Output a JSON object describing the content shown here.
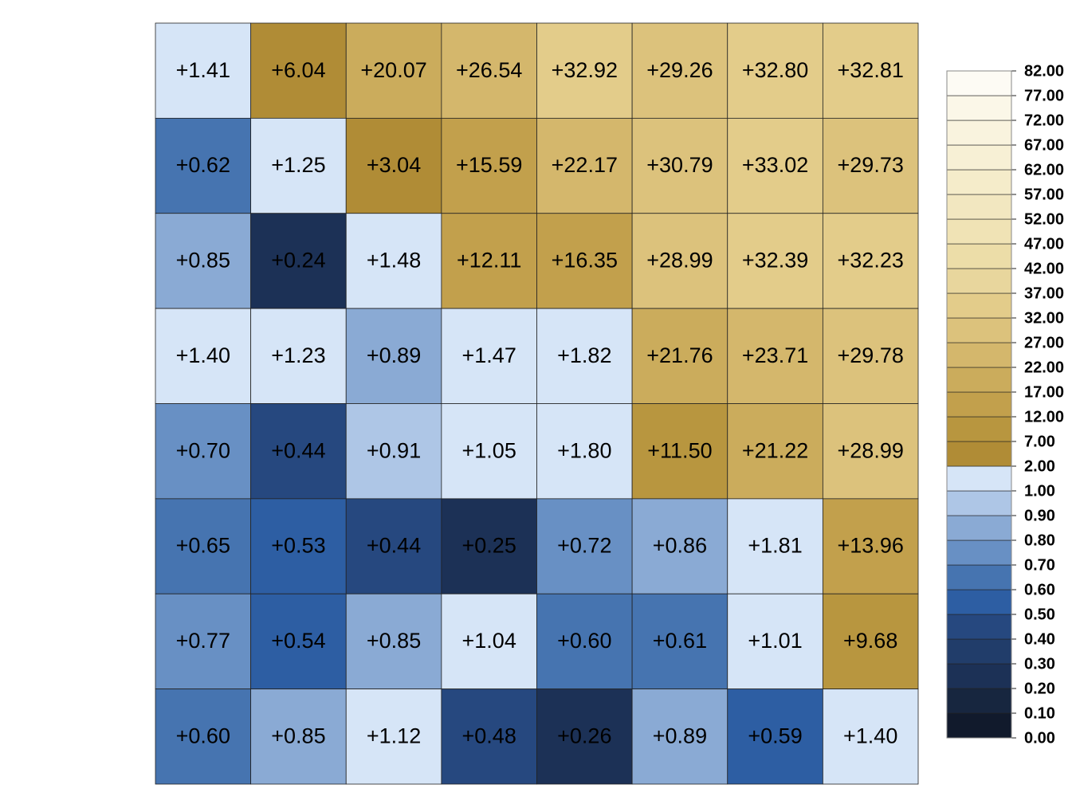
{
  "chart_data": {
    "type": "heatmap",
    "values": [
      [
        1.41,
        6.04,
        20.07,
        26.54,
        32.92,
        29.26,
        32.8,
        32.81
      ],
      [
        0.62,
        1.25,
        3.04,
        15.59,
        22.17,
        30.79,
        33.02,
        29.73
      ],
      [
        0.85,
        0.24,
        1.48,
        12.11,
        16.35,
        28.99,
        32.39,
        32.23
      ],
      [
        1.4,
        1.23,
        0.89,
        1.47,
        1.82,
        21.76,
        23.71,
        29.78
      ],
      [
        0.7,
        0.44,
        0.91,
        1.05,
        1.8,
        11.5,
        21.22,
        28.99
      ],
      [
        0.65,
        0.53,
        0.44,
        0.25,
        0.72,
        0.86,
        1.81,
        13.96
      ],
      [
        0.77,
        0.54,
        0.85,
        1.04,
        0.6,
        0.61,
        1.01,
        9.68
      ],
      [
        0.6,
        0.85,
        1.12,
        0.48,
        0.26,
        0.89,
        0.59,
        1.4
      ]
    ],
    "value_labels": [
      [
        "+1.41",
        "+6.04",
        "+20.07",
        "+26.54",
        "+32.92",
        "+29.26",
        "+32.80",
        "+32.81"
      ],
      [
        "+0.62",
        "+1.25",
        "+3.04",
        "+15.59",
        "+22.17",
        "+30.79",
        "+33.02",
        "+29.73"
      ],
      [
        "+0.85",
        "+0.24",
        "+1.48",
        "+12.11",
        "+16.35",
        "+28.99",
        "+32.39",
        "+32.23"
      ],
      [
        "+1.40",
        "+1.23",
        "+0.89",
        "+1.47",
        "+1.82",
        "+21.76",
        "+23.71",
        "+29.78"
      ],
      [
        "+0.70",
        "+0.44",
        "+0.91",
        "+1.05",
        "+1.80",
        "+11.50",
        "+21.22",
        "+28.99"
      ],
      [
        "+0.65",
        "+0.53",
        "+0.44",
        "+0.25",
        "+0.72",
        "+0.86",
        "+1.81",
        "+13.96"
      ],
      [
        "+0.77",
        "+0.54",
        "+0.85",
        "+1.04",
        "+0.60",
        "+0.61",
        "+1.01",
        "+9.68"
      ],
      [
        "+0.60",
        "+0.85",
        "+1.12",
        "+0.48",
        "+0.26",
        "+0.89",
        "+0.59",
        "+1.40"
      ]
    ],
    "colorbar": {
      "ticks": [
        {
          "value": 0,
          "label": "0.00"
        },
        {
          "value": 0.1,
          "label": "0.10"
        },
        {
          "value": 0.2,
          "label": "0.20"
        },
        {
          "value": 0.3,
          "label": "0.30"
        },
        {
          "value": 0.4,
          "label": "0.40"
        },
        {
          "value": 0.5,
          "label": "0.50"
        },
        {
          "value": 0.6,
          "label": "0.60"
        },
        {
          "value": 0.7,
          "label": "0.70"
        },
        {
          "value": 0.8,
          "label": "0.80"
        },
        {
          "value": 0.9,
          "label": "0.90"
        },
        {
          "value": 1,
          "label": "1.00"
        },
        {
          "value": 2,
          "label": "2.00"
        },
        {
          "value": 7,
          "label": "7.00"
        },
        {
          "value": 12,
          "label": "12.00"
        },
        {
          "value": 17,
          "label": "17.00"
        },
        {
          "value": 22,
          "label": "22.00"
        },
        {
          "value": 27,
          "label": "27.00"
        },
        {
          "value": 32,
          "label": "32.00"
        },
        {
          "value": 37,
          "label": "37.00"
        },
        {
          "value": 42,
          "label": "42.00"
        },
        {
          "value": 47,
          "label": "47.00"
        },
        {
          "value": 52,
          "label": "52.00"
        },
        {
          "value": 57,
          "label": "57.00"
        },
        {
          "value": 62,
          "label": "62.00"
        },
        {
          "value": 67,
          "label": "67.00"
        },
        {
          "value": 72,
          "label": "72.00"
        },
        {
          "value": 77,
          "label": "77.00"
        },
        {
          "value": 82,
          "label": "82.00"
        }
      ],
      "colors": [
        "#111a2c",
        "#17263f",
        "#1c3156",
        "#213d6a",
        "#26487f",
        "#2d5ea3",
        "#4674b0",
        "#6890c4",
        "#8aaad4",
        "#aec6e6",
        "#d6e5f7",
        "#b08c36",
        "#b8963f",
        "#c2a04c",
        "#cbac5c",
        "#d4b76c",
        "#dcc27c",
        "#e3cc8a",
        "#e8d69d",
        "#ecdda8",
        "#f0e3b5",
        "#f2e7c0",
        "#f5ecca",
        "#f7f0d5",
        "#f9f3de",
        "#fbf7e8",
        "#fdfbf4"
      ]
    }
  }
}
